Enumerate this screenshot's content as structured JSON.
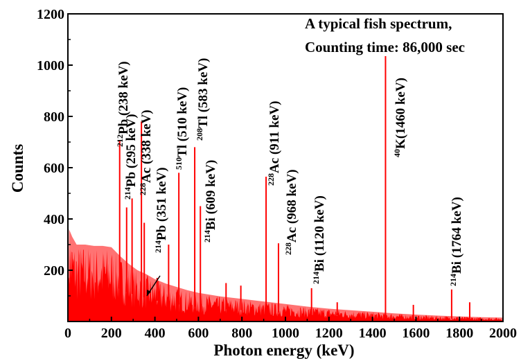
{
  "chart_data": {
    "type": "line",
    "title": "",
    "annotation_lines": [
      "A typical fish spectrum,",
      "Counting time: 86,000 sec"
    ],
    "xlabel": "Photon energy (keV)",
    "ylabel": "Counts",
    "xlim": [
      0,
      2000
    ],
    "ylim": [
      0,
      1200
    ],
    "x_ticks": [
      0,
      200,
      400,
      600,
      800,
      1000,
      1200,
      1400,
      1600,
      1800,
      2000
    ],
    "y_ticks": [
      200,
      400,
      600,
      800,
      1000,
      1200
    ],
    "x_tick_labels": [
      "0",
      "200",
      "400",
      "600",
      "800",
      "1000",
      "1200",
      "1400",
      "1600",
      "1800",
      "2000"
    ],
    "y_tick_labels": [
      "200",
      "400",
      "600",
      "800",
      "1000",
      "1200"
    ],
    "grid": false,
    "series_color": "#ff0000",
    "continuum": [
      {
        "x": 0,
        "y": 10
      },
      {
        "x": 5,
        "y": 360
      },
      {
        "x": 20,
        "y": 330
      },
      {
        "x": 40,
        "y": 300
      },
      {
        "x": 80,
        "y": 300
      },
      {
        "x": 120,
        "y": 295
      },
      {
        "x": 160,
        "y": 295
      },
      {
        "x": 200,
        "y": 290
      },
      {
        "x": 240,
        "y": 255
      },
      {
        "x": 280,
        "y": 225
      },
      {
        "x": 320,
        "y": 200
      },
      {
        "x": 360,
        "y": 185
      },
      {
        "x": 400,
        "y": 165
      },
      {
        "x": 450,
        "y": 148
      },
      {
        "x": 500,
        "y": 135
      },
      {
        "x": 550,
        "y": 122
      },
      {
        "x": 600,
        "y": 112
      },
      {
        "x": 700,
        "y": 98
      },
      {
        "x": 800,
        "y": 88
      },
      {
        "x": 900,
        "y": 78
      },
      {
        "x": 1000,
        "y": 68
      },
      {
        "x": 1100,
        "y": 58
      },
      {
        "x": 1200,
        "y": 50
      },
      {
        "x": 1300,
        "y": 44
      },
      {
        "x": 1400,
        "y": 38
      },
      {
        "x": 1500,
        "y": 32
      },
      {
        "x": 1600,
        "y": 27
      },
      {
        "x": 1700,
        "y": 23
      },
      {
        "x": 1800,
        "y": 20
      },
      {
        "x": 1900,
        "y": 17
      },
      {
        "x": 2000,
        "y": 15
      }
    ],
    "peaks": [
      {
        "x": 238,
        "y": 705
      },
      {
        "x": 270,
        "y": 445
      },
      {
        "x": 295,
        "y": 480
      },
      {
        "x": 338,
        "y": 780
      },
      {
        "x": 351,
        "y": 385
      },
      {
        "x": 410,
        "y": 170
      },
      {
        "x": 463,
        "y": 300
      },
      {
        "x": 510,
        "y": 580
      },
      {
        "x": 583,
        "y": 680
      },
      {
        "x": 609,
        "y": 450
      },
      {
        "x": 727,
        "y": 150
      },
      {
        "x": 795,
        "y": 140
      },
      {
        "x": 911,
        "y": 565
      },
      {
        "x": 968,
        "y": 305
      },
      {
        "x": 1120,
        "y": 130
      },
      {
        "x": 1238,
        "y": 75
      },
      {
        "x": 1460,
        "y": 1035
      },
      {
        "x": 1588,
        "y": 65
      },
      {
        "x": 1764,
        "y": 125
      },
      {
        "x": 1847,
        "y": 75
      }
    ],
    "peak_labels": [
      {
        "sup": "212",
        "text": "Pb (238 keV)"
      },
      {
        "sup": "214",
        "text": "Pb (295 keV)"
      },
      {
        "sup": "228",
        "text": "Ac (338 keV)"
      },
      {
        "sup": "214",
        "text": "Pb (351 keV)"
      },
      {
        "sup": "510",
        "text": "Tl (510 keV)"
      },
      {
        "sup": "208",
        "text": "Tl (583 keV)"
      },
      {
        "sup": "214",
        "text": "Bi (609 keV)"
      },
      {
        "sup": "228",
        "text": "Ac (911 keV)"
      },
      {
        "sup": "228",
        "text": "Ac (968 keV)"
      },
      {
        "sup": "214",
        "text": "Bi (1120 keV)"
      },
      {
        "sup": "40",
        "text": "K(1460 keV)"
      },
      {
        "sup": "214",
        "text": "Bi (1764 keV)"
      }
    ]
  }
}
